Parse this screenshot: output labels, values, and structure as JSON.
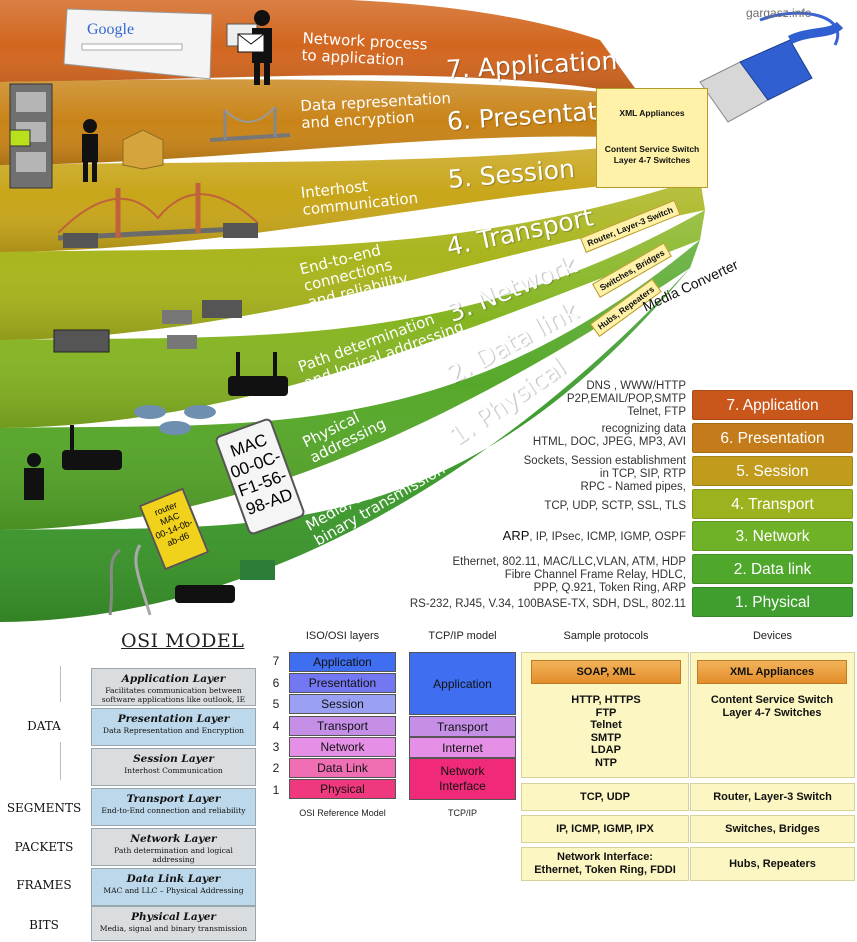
{
  "watermark": "gargasz.info",
  "bands": [
    {
      "label": "7. Application",
      "desc": "Network process\nto application",
      "color": "#d2661f"
    },
    {
      "label": "6. Presentation",
      "desc": "Data representation\nand encryption",
      "color": "#c98418"
    },
    {
      "label": "5. Session",
      "desc": "Interhost\ncommunication",
      "color": "#c8a61a"
    },
    {
      "label": "4. Transport",
      "desc": "End-to-end\nconnections\nand reliability",
      "color": "#a9b51d"
    },
    {
      "label": "3. Network",
      "desc": "Path determination\nand logical addressing",
      "color": "#86b523"
    },
    {
      "label": "2. Data link",
      "desc": "Physical\naddressing",
      "color": "#56a82a"
    },
    {
      "label": "1. Physical",
      "desc": "Media, signal and\nbinary transmission",
      "color": "#3c9a2c"
    }
  ],
  "devices_top": {
    "xml": "XML Appliances",
    "content_switch": "Content Service Switch\nLayer 4-7 Switches",
    "router": "Router, Layer-3 Switch",
    "switches": "Switches, Bridges",
    "hubs": "Hubs, Repeaters",
    "media_converter": "Media Converter"
  },
  "illustration_text": {
    "google": "Google",
    "mac": "MAC\n00-0C-F1-56-98-AD",
    "router_mac": "router\nMAC\n00-14-0b-ab-d6"
  },
  "protocols_top": [
    "DNS , WWW/HTTP\nP2P,EMAIL/POP,SMTP\nTelnet, FTP",
    "recognizing data\nHTML, DOC, JPEG, MP3, AVI",
    "Sockets, Session establishment\nin TCP, SIP, RTP\nRPC - Named pipes,",
    "TCP, UDP, SCTP, SSL, TLS",
    "IP, IPsec, ICMP, IGMP, OSPF",
    "Ethernet, 802.11, MAC/LLC,VLAN, ATM, HDP\nFibre Channel Frame Relay, HDLC,\nPPP, Q.921, Token Ring, ARP",
    "RS-232, RJ45, V.34, 100BASE-TX, SDH, DSL, 802.11"
  ],
  "arp_label": "ARP",
  "legend": [
    {
      "label": "7. Application",
      "color": "#c9571b"
    },
    {
      "label": "6. Presentation",
      "color": "#c47c1a"
    },
    {
      "label": "5. Session",
      "color": "#c09b1c"
    },
    {
      "label": "4. Transport",
      "color": "#9db21f"
    },
    {
      "label": "3. Network",
      "color": "#6fb127"
    },
    {
      "label": "2. Data link",
      "color": "#4fa72c"
    },
    {
      "label": "1. Physical",
      "color": "#3f9e2e"
    }
  ],
  "osi": {
    "title": "OSI MODEL",
    "pdu": [
      "DATA",
      "SEGMENTS",
      "PACKETS",
      "FRAMES",
      "BITS"
    ],
    "layers": [
      {
        "name": "Application Layer",
        "desc": "Facilitates communication between\nsoftware applications like outlook, IE",
        "color": "#d9dde0"
      },
      {
        "name": "Presentation Layer",
        "desc": "Data Representation and Encryption",
        "color": "#bcd8ea"
      },
      {
        "name": "Session Layer",
        "desc": "Interhost Communication",
        "color": "#d9dde0"
      },
      {
        "name": "Transport Layer",
        "desc": "End-to-End connection and reliability",
        "color": "#bcd8ea"
      },
      {
        "name": "Network Layer",
        "desc": "Path determination and logical addressing",
        "color": "#d9dde0"
      },
      {
        "name": "Data Link Layer",
        "desc": "MAC and LLC – Physical Addressing",
        "color": "#bcd8ea"
      },
      {
        "name": "Physical Layer",
        "desc": "Media, signal and binary transmission",
        "color": "#d9dde0"
      }
    ]
  },
  "iso": {
    "heading": "ISO/OSI layers",
    "numbers": [
      "7",
      "6",
      "5",
      "4",
      "3",
      "2",
      "1"
    ],
    "layers": [
      {
        "label": "Application",
        "color": "#3f6ff0"
      },
      {
        "label": "Presentation",
        "color": "#7378f2"
      },
      {
        "label": "Session",
        "color": "#9aa1f3"
      },
      {
        "label": "Transport",
        "color": "#c58fe8"
      },
      {
        "label": "Network",
        "color": "#e68fe6"
      },
      {
        "label": "Data Link",
        "color": "#f06fb4"
      },
      {
        "label": "Physical",
        "color": "#f0387e"
      }
    ],
    "footer": "OSI Reference Model"
  },
  "tcpip": {
    "heading": "TCP/IP model",
    "layers": [
      {
        "label": "Application",
        "color": "#3f6ff0"
      },
      {
        "label": "Transport",
        "color": "#c58fe8"
      },
      {
        "label": "Internet",
        "color": "#e68fe6"
      },
      {
        "label": "Network\nInterface",
        "color": "#f02a78"
      }
    ],
    "footer": "TCP/IP"
  },
  "sample_protocols": {
    "heading": "Sample protocols",
    "top": "SOAP, XML",
    "app": "HTTP, HTTPS\nFTP\nTelnet\nSMTP\nLDAP\nNTP",
    "transport": "TCP, UDP",
    "network": "IP, ICMP, IGMP, IPX",
    "link": "Network Interface:\nEthernet, Token Ring, FDDI"
  },
  "devices": {
    "heading": "Devices",
    "top": "XML Appliances",
    "app": "Content Service Switch\nLayer 4-7 Switches",
    "transport": "Router, Layer-3 Switch",
    "network": "Switches, Bridges",
    "link": "Hubs, Repeaters"
  }
}
